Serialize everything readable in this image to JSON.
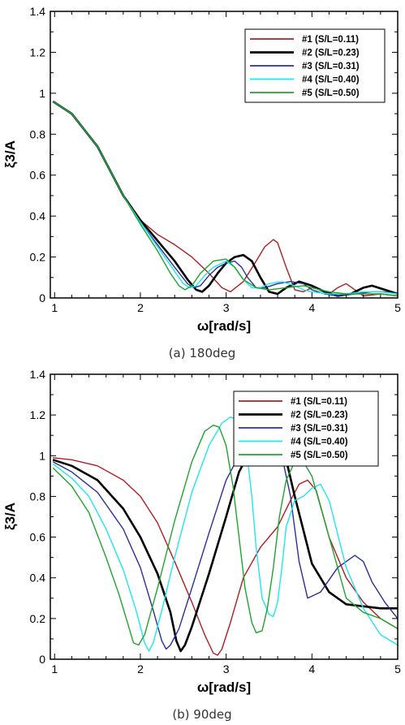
{
  "chart_data": [
    {
      "type": "line",
      "caption": "(a) 180deg",
      "xlabel": "ω[rad/s]",
      "ylabel": "ξ3/A",
      "xlim": [
        0.95,
        5
      ],
      "ylim": [
        0,
        1.4
      ],
      "x_ticks": [
        "1",
        "2",
        "3",
        "4",
        "5"
      ],
      "y_ticks": [
        "0",
        "0.2",
        "0.4",
        "0.6",
        "0.8",
        "1",
        "1.2",
        "1.4"
      ],
      "grid": false,
      "legend_position": "top-right",
      "series": [
        {
          "name": "#1 (S/L=0.11)",
          "color": "#b01e23",
          "x": [
            0.98,
            1.2,
            1.5,
            1.8,
            2.0,
            2.2,
            2.4,
            2.6,
            2.8,
            2.95,
            3.05,
            3.2,
            3.35,
            3.45,
            3.55,
            3.6,
            3.7,
            3.8,
            3.9,
            4.0,
            4.1,
            4.2,
            4.3,
            4.4,
            4.5,
            4.6,
            4.8,
            5.0
          ],
          "y": [
            0.96,
            0.9,
            0.74,
            0.5,
            0.38,
            0.31,
            0.26,
            0.2,
            0.12,
            0.05,
            0.03,
            0.08,
            0.18,
            0.25,
            0.285,
            0.27,
            0.15,
            0.04,
            0.03,
            0.05,
            0.04,
            0.02,
            0.05,
            0.07,
            0.04,
            0.01,
            0.02,
            0.01
          ]
        },
        {
          "name": "#2 (S/L=0.23)",
          "color": "#000000",
          "x": [
            0.98,
            1.2,
            1.5,
            1.8,
            2.0,
            2.2,
            2.4,
            2.55,
            2.65,
            2.72,
            2.8,
            2.9,
            3.0,
            3.1,
            3.2,
            3.3,
            3.4,
            3.5,
            3.6,
            3.7,
            3.85,
            4.0,
            4.15,
            4.3,
            4.45,
            4.6,
            4.7,
            4.85,
            5.0
          ],
          "y": [
            0.96,
            0.9,
            0.74,
            0.5,
            0.38,
            0.28,
            0.18,
            0.09,
            0.04,
            0.03,
            0.06,
            0.12,
            0.17,
            0.2,
            0.21,
            0.18,
            0.1,
            0.03,
            0.02,
            0.05,
            0.08,
            0.06,
            0.03,
            0.01,
            0.02,
            0.05,
            0.06,
            0.04,
            0.02
          ]
        },
        {
          "name": "#3 (S/L=0.31)",
          "color": "#2b2f9a",
          "x": [
            0.98,
            1.2,
            1.5,
            1.8,
            2.0,
            2.2,
            2.4,
            2.55,
            2.62,
            2.7,
            2.8,
            2.9,
            3.0,
            3.1,
            3.18,
            3.25,
            3.35,
            3.45,
            3.6,
            3.75,
            3.9,
            4.0,
            4.15,
            4.3,
            4.5,
            4.7,
            4.85,
            5.0
          ],
          "y": [
            0.96,
            0.9,
            0.74,
            0.5,
            0.37,
            0.26,
            0.15,
            0.07,
            0.05,
            0.06,
            0.11,
            0.15,
            0.17,
            0.18,
            0.15,
            0.1,
            0.05,
            0.05,
            0.07,
            0.08,
            0.07,
            0.04,
            0.02,
            0.01,
            0.02,
            0.03,
            0.03,
            0.02
          ]
        },
        {
          "name": "#4 (S/L=0.40)",
          "color": "#1fe6f0",
          "x": [
            0.98,
            1.2,
            1.5,
            1.8,
            2.0,
            2.2,
            2.4,
            2.5,
            2.58,
            2.65,
            2.75,
            2.85,
            3.0,
            3.1,
            3.2,
            3.3,
            3.4,
            3.5,
            3.65,
            3.8,
            3.9,
            4.0,
            4.2,
            4.4,
            4.6,
            4.8,
            5.0
          ],
          "y": [
            0.96,
            0.9,
            0.74,
            0.5,
            0.37,
            0.25,
            0.13,
            0.07,
            0.05,
            0.06,
            0.11,
            0.15,
            0.18,
            0.15,
            0.09,
            0.05,
            0.05,
            0.07,
            0.08,
            0.06,
            0.04,
            0.03,
            0.02,
            0.02,
            0.03,
            0.03,
            0.02
          ]
        },
        {
          "name": "#5 (S/L=0.50)",
          "color": "#1fa42e",
          "x": [
            0.98,
            1.2,
            1.5,
            1.8,
            2.0,
            2.2,
            2.35,
            2.45,
            2.52,
            2.6,
            2.7,
            2.85,
            3.0,
            3.1,
            3.2,
            3.35,
            3.5,
            3.7,
            3.9,
            4.0,
            4.2,
            4.4,
            4.6,
            4.8,
            5.0
          ],
          "y": [
            0.96,
            0.9,
            0.74,
            0.5,
            0.36,
            0.23,
            0.12,
            0.06,
            0.04,
            0.06,
            0.12,
            0.18,
            0.19,
            0.15,
            0.09,
            0.05,
            0.04,
            0.05,
            0.06,
            0.05,
            0.03,
            0.02,
            0.02,
            0.02,
            0.01
          ]
        }
      ]
    },
    {
      "type": "line",
      "caption": "(b) 90deg",
      "xlabel": "ω[rad/s]",
      "ylabel": "ξ3/A",
      "xlim": [
        0.95,
        5
      ],
      "ylim": [
        0,
        1.4
      ],
      "x_ticks": [
        "1",
        "2",
        "3",
        "4",
        "5"
      ],
      "y_ticks": [
        "0",
        "0.2",
        "0.4",
        "0.6",
        "0.8",
        "1",
        "1.2",
        "1.4"
      ],
      "grid": false,
      "legend_position": "top-right",
      "series": [
        {
          "name": "#1 (S/L=0.11)",
          "color": "#b01e23",
          "x": [
            0.98,
            1.2,
            1.5,
            1.8,
            2.0,
            2.2,
            2.4,
            2.6,
            2.75,
            2.85,
            2.9,
            2.95,
            3.05,
            3.2,
            3.4,
            3.6,
            3.75,
            3.85,
            3.95,
            4.05,
            4.2,
            4.4,
            4.6,
            4.8,
            5.0
          ],
          "y": [
            0.99,
            0.98,
            0.95,
            0.88,
            0.8,
            0.67,
            0.48,
            0.28,
            0.12,
            0.03,
            0.02,
            0.05,
            0.18,
            0.4,
            0.55,
            0.65,
            0.78,
            0.86,
            0.88,
            0.83,
            0.6,
            0.4,
            0.28,
            0.2,
            0.15
          ]
        },
        {
          "name": "#2 (S/L=0.23)",
          "color": "#000000",
          "x": [
            0.98,
            1.2,
            1.5,
            1.8,
            2.0,
            2.2,
            2.35,
            2.42,
            2.47,
            2.52,
            2.6,
            2.8,
            3.0,
            3.15,
            3.25,
            3.35,
            3.45,
            3.55,
            3.62,
            3.7,
            3.8,
            4.0,
            4.2,
            4.4,
            4.6,
            4.8,
            5.0
          ],
          "y": [
            0.98,
            0.95,
            0.88,
            0.74,
            0.6,
            0.42,
            0.23,
            0.09,
            0.04,
            0.07,
            0.16,
            0.42,
            0.7,
            0.92,
            1.0,
            1.0,
            1.0,
            1.0,
            1.0,
            0.98,
            0.8,
            0.47,
            0.33,
            0.27,
            0.26,
            0.25,
            0.25
          ]
        },
        {
          "name": "#3 (S/L=0.31)",
          "color": "#2b2f9a",
          "x": [
            0.98,
            1.2,
            1.5,
            1.8,
            2.0,
            2.15,
            2.25,
            2.3,
            2.35,
            2.45,
            2.6,
            2.8,
            3.0,
            3.15,
            3.25,
            3.35,
            3.45,
            3.55,
            3.65,
            3.75,
            3.85,
            3.95,
            4.1,
            4.3,
            4.5,
            4.6,
            4.7,
            4.85,
            5.0
          ],
          "y": [
            0.97,
            0.92,
            0.82,
            0.64,
            0.45,
            0.24,
            0.09,
            0.05,
            0.07,
            0.15,
            0.35,
            0.62,
            0.88,
            1.0,
            1.0,
            1.0,
            1.0,
            1.0,
            1.0,
            0.8,
            0.48,
            0.3,
            0.33,
            0.45,
            0.51,
            0.48,
            0.38,
            0.28,
            0.2
          ]
        },
        {
          "name": "#4 (S/L=0.40)",
          "color": "#1fe6f0",
          "x": [
            0.98,
            1.2,
            1.4,
            1.6,
            1.8,
            1.95,
            2.05,
            2.1,
            2.15,
            2.25,
            2.4,
            2.6,
            2.8,
            2.95,
            3.05,
            3.12,
            3.2,
            3.25,
            3.3,
            3.35,
            3.42,
            3.5,
            3.55,
            3.6,
            3.65,
            3.7,
            3.8,
            3.9,
            4.0,
            4.1,
            4.2,
            4.4,
            4.6,
            4.8,
            5.0
          ],
          "y": [
            0.96,
            0.89,
            0.8,
            0.64,
            0.44,
            0.24,
            0.08,
            0.04,
            0.08,
            0.24,
            0.5,
            0.82,
            1.05,
            1.16,
            1.19,
            1.18,
            1.1,
            0.98,
            0.8,
            0.55,
            0.3,
            0.22,
            0.21,
            0.28,
            0.45,
            0.65,
            0.78,
            0.8,
            0.84,
            0.86,
            0.78,
            0.45,
            0.25,
            0.12,
            0.07
          ]
        },
        {
          "name": "#5 (S/L=0.50)",
          "color": "#1fa42e",
          "x": [
            0.98,
            1.2,
            1.4,
            1.6,
            1.75,
            1.85,
            1.92,
            1.98,
            2.05,
            2.2,
            2.4,
            2.6,
            2.75,
            2.85,
            2.92,
            3.0,
            3.08,
            3.15,
            3.22,
            3.3,
            3.35,
            3.42,
            3.48,
            3.55,
            3.62,
            3.7,
            3.8,
            3.9,
            4.0,
            4.2,
            4.4,
            4.6,
            4.8,
            5.0
          ],
          "y": [
            0.94,
            0.85,
            0.72,
            0.5,
            0.32,
            0.18,
            0.08,
            0.07,
            0.12,
            0.35,
            0.68,
            0.97,
            1.12,
            1.15,
            1.14,
            1.05,
            0.85,
            0.6,
            0.35,
            0.18,
            0.13,
            0.14,
            0.25,
            0.45,
            0.7,
            0.88,
            0.97,
            0.97,
            0.9,
            0.6,
            0.3,
            0.23,
            0.2,
            0.15
          ]
        }
      ]
    }
  ]
}
